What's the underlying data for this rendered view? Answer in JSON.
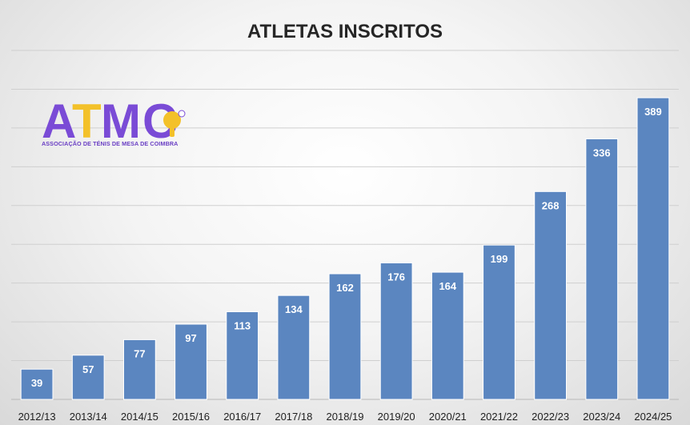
{
  "colors": {
    "bar": "#5b86c0",
    "bar_edge": "#ffffff",
    "grid": "#cfcfcf",
    "axis_text": "#1f1f1f",
    "label_text": "#ffffff",
    "logo_purple": "#7a4bd6",
    "logo_yellow": "#f3c12a"
  },
  "logo": {
    "wordmark": "ATMC",
    "subtitle": "ASSOCIAÇÃO DE TÉNIS DE MESA DE COIMBRA",
    "icon": "ping-pong-paddle-icon"
  },
  "chart_data": {
    "type": "bar",
    "title": "ATLETAS INSCRITOS",
    "xlabel": "",
    "ylabel": "",
    "categories": [
      "2012/13",
      "2013/14",
      "2014/15",
      "2015/16",
      "2016/17",
      "2017/18",
      "2018/19",
      "2019/20",
      "2020/21",
      "2021/22",
      "2022/23",
      "2023/24",
      "2024/25"
    ],
    "values": [
      39,
      57,
      77,
      97,
      113,
      134,
      162,
      176,
      164,
      199,
      268,
      336,
      389
    ],
    "ylim": [
      0,
      450
    ],
    "grid": true,
    "data_labels": true,
    "y_tick_labels_visible": false
  }
}
